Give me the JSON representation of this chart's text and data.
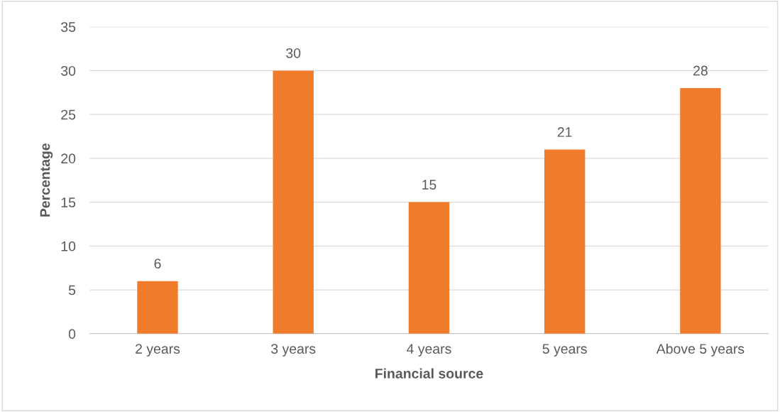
{
  "chart_data": {
    "type": "bar",
    "xlabel": "Financial source",
    "ylabel": "Percentage",
    "categories": [
      "2 years",
      "3 years",
      "4 years",
      "5 years",
      "Above 5 years"
    ],
    "values": [
      6,
      30,
      15,
      21,
      28
    ],
    "color": "#f07b2b",
    "ylim": [
      0,
      35
    ],
    "yticks": [
      0,
      5,
      10,
      15,
      20,
      25,
      30,
      35
    ],
    "grid": "y",
    "data_labels": true
  }
}
